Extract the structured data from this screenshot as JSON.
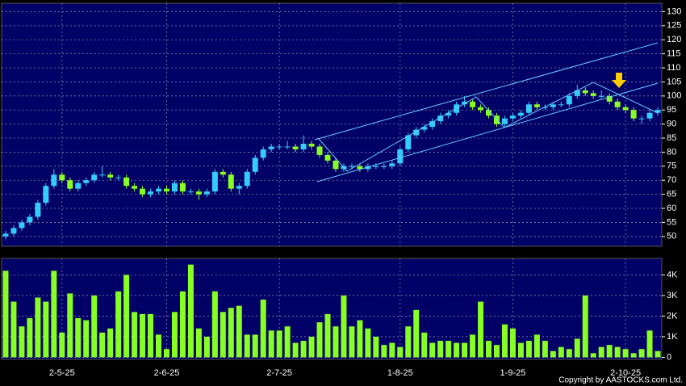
{
  "chart_data": {
    "type": "candlestick",
    "open": [
      50,
      51,
      53,
      55,
      57,
      62,
      68,
      72,
      70,
      67,
      69,
      70,
      72,
      72,
      71,
      71,
      68,
      67,
      65,
      66,
      67,
      66,
      69,
      66,
      66,
      65,
      66,
      73,
      72,
      67,
      68,
      73,
      78,
      81,
      82,
      82,
      82,
      81,
      83,
      82,
      79,
      77,
      74,
      75,
      75,
      74,
      75,
      75,
      75,
      76,
      81,
      86,
      88,
      89,
      91,
      93,
      94,
      97,
      98,
      96,
      95,
      93,
      90,
      92,
      93,
      94,
      97,
      96,
      96,
      97,
      97,
      100,
      102,
      101,
      100,
      100,
      98,
      96,
      95,
      92,
      92,
      94
    ],
    "high": [
      52,
      54,
      56,
      58,
      63,
      69,
      74,
      73,
      71,
      70,
      71,
      73,
      75,
      73,
      72,
      72,
      69,
      68,
      67,
      68,
      68,
      70,
      70,
      67,
      67,
      67,
      74,
      74,
      73,
      69,
      74,
      79,
      82,
      83,
      83,
      84,
      83,
      86,
      84,
      83,
      80,
      78,
      76,
      76,
      76,
      76,
      76,
      76,
      77,
      82,
      87,
      89,
      90,
      92,
      94,
      95,
      98,
      100,
      99,
      97,
      96,
      94,
      93,
      94,
      95,
      98,
      98,
      97,
      98,
      98,
      101,
      104,
      103,
      102,
      102,
      101,
      99,
      97,
      96,
      93,
      95,
      96
    ],
    "low": [
      49,
      50,
      52,
      54,
      56,
      61,
      67,
      69,
      66,
      66,
      68,
      69,
      71,
      70,
      70,
      67,
      66,
      64,
      64,
      65,
      65,
      65,
      65,
      65,
      63,
      64,
      65,
      71,
      66,
      65,
      67,
      72,
      77,
      80,
      81,
      81,
      80,
      80,
      81,
      78,
      76,
      73,
      73,
      74,
      73,
      73,
      74,
      74,
      74,
      75,
      80,
      85,
      87,
      88,
      90,
      92,
      93,
      96,
      95,
      94,
      92,
      89,
      89,
      91,
      92,
      93,
      95,
      95,
      95,
      96,
      96,
      99,
      100,
      99,
      99,
      97,
      95,
      94,
      91,
      90,
      91,
      93
    ],
    "close": [
      51,
      53,
      55,
      57,
      62,
      68,
      72,
      70,
      67,
      69,
      70,
      72,
      72,
      71,
      71,
      68,
      67,
      65,
      66,
      67,
      66,
      69,
      66,
      66,
      65,
      66,
      73,
      72,
      67,
      68,
      73,
      78,
      81,
      82,
      82,
      82,
      81,
      83,
      82,
      79,
      77,
      74,
      75,
      75,
      74,
      75,
      75,
      75,
      76,
      81,
      86,
      88,
      89,
      91,
      93,
      94,
      97,
      98,
      96,
      95,
      93,
      90,
      92,
      93,
      94,
      97,
      96,
      96,
      97,
      97,
      100,
      102,
      101,
      100,
      100,
      98,
      96,
      95,
      92,
      92,
      94,
      95
    ],
    "up_color": "#33ccff",
    "down_color": "#88ff22",
    "ylim": [
      46.5,
      133
    ],
    "yticks": [
      50,
      55,
      60,
      65,
      70,
      75,
      80,
      85,
      90,
      95,
      100,
      105,
      110,
      115,
      120,
      125,
      130
    ],
    "xlim": [
      0,
      82
    ],
    "xticks": [
      {
        "value": 7,
        "label": "2-5-25"
      },
      {
        "value": 20,
        "label": "2-6-25"
      },
      {
        "value": 34,
        "label": "2-7-25"
      },
      {
        "value": 49,
        "label": "1-8-25"
      },
      {
        "value": 63,
        "label": "1-9-25"
      },
      {
        "value": 77,
        "label": "2-10-25"
      }
    ],
    "volume": {
      "values": [
        4200,
        2700,
        1500,
        1900,
        2900,
        2700,
        4200,
        1200,
        3100,
        1900,
        1800,
        3000,
        1200,
        1400,
        3200,
        4000,
        2200,
        2100,
        2100,
        1100,
        400,
        2200,
        3200,
        4500,
        1400,
        1000,
        3200,
        2200,
        2400,
        2500,
        1100,
        1100,
        2800,
        1300,
        1300,
        1500,
        700,
        800,
        1000,
        1700,
        2100,
        1500,
        3000,
        1500,
        1800,
        1400,
        1000,
        600,
        700,
        500,
        1500,
        2300,
        1200,
        700,
        800,
        800,
        700,
        700,
        1100,
        2700,
        800,
        600,
        1600,
        1400,
        700,
        800,
        1100,
        800,
        300,
        500,
        400,
        900,
        3000,
        200,
        500,
        600,
        500,
        400,
        200,
        400,
        1300,
        300
      ],
      "color": "#88ff22",
      "ylim": [
        -100,
        4800
      ],
      "yticks": [
        0,
        {
          "value": 1000,
          "label": "1K"
        },
        {
          "value": 2000,
          "label": "2K"
        },
        {
          "value": 3000,
          "label": "3K"
        },
        {
          "value": 4000,
          "label": "4K"
        }
      ]
    },
    "grid": true,
    "copyright": "Copyright by AASTOCKS.com Ltd."
  }
}
